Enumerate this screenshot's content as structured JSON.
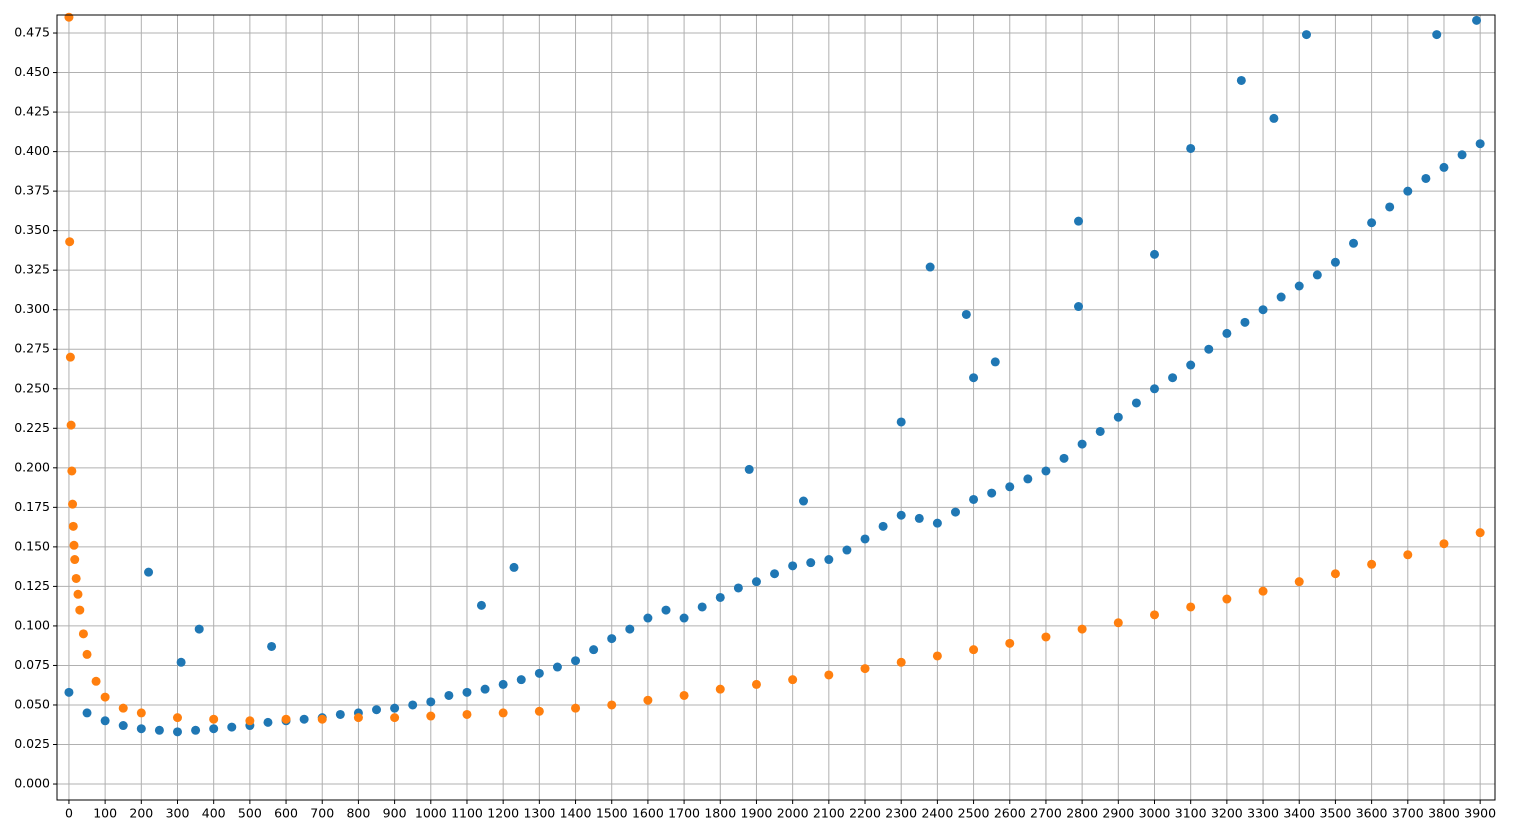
{
  "chart_data": {
    "type": "scatter",
    "xlim": [
      -33,
      3941
    ],
    "ylim": [
      -0.0101,
      0.4864
    ],
    "xticks": [
      0,
      100,
      200,
      300,
      400,
      500,
      600,
      700,
      800,
      900,
      1000,
      1100,
      1200,
      1300,
      1400,
      1500,
      1600,
      1700,
      1800,
      1900,
      2000,
      2100,
      2200,
      2300,
      2400,
      2500,
      2600,
      2700,
      2800,
      2900,
      3000,
      3100,
      3200,
      3300,
      3400,
      3500,
      3600,
      3700,
      3800,
      3900
    ],
    "yticks": [
      {
        "value": 0,
        "label": "0.000"
      },
      {
        "value": 0.025,
        "label": "0.025"
      },
      {
        "value": 0.05,
        "label": "0.050"
      },
      {
        "value": 0.075,
        "label": "0.075"
      },
      {
        "value": 0.1,
        "label": "0.100"
      },
      {
        "value": 0.125,
        "label": "0.125"
      },
      {
        "value": 0.15,
        "label": "0.150"
      },
      {
        "value": 0.175,
        "label": "0.175"
      },
      {
        "value": 0.2,
        "label": "0.200"
      },
      {
        "value": 0.225,
        "label": "0.225"
      },
      {
        "value": 0.25,
        "label": "0.250"
      },
      {
        "value": 0.275,
        "label": "0.275"
      },
      {
        "value": 0.3,
        "label": "0.300"
      },
      {
        "value": 0.325,
        "label": "0.325"
      },
      {
        "value": 0.35,
        "label": "0.350"
      },
      {
        "value": 0.375,
        "label": "0.375"
      },
      {
        "value": 0.4,
        "label": "0.400"
      },
      {
        "value": 0.425,
        "label": "0.425"
      },
      {
        "value": 0.45,
        "label": "0.450"
      },
      {
        "value": 0.475,
        "label": "0.475"
      }
    ],
    "grid": true,
    "series": [
      {
        "color": "#1f77b4",
        "x": [
          0,
          50,
          100,
          150,
          200,
          250,
          300,
          350,
          400,
          450,
          500,
          550,
          600,
          650,
          700,
          750,
          800,
          850,
          900,
          950,
          1000,
          1050,
          1100,
          1150,
          1200,
          1250,
          1300,
          1350,
          1400,
          1450,
          1500,
          1550,
          1600,
          1650,
          1700,
          1750,
          1800,
          1850,
          1900,
          1950,
          2000,
          2050,
          2100,
          2150,
          2200,
          2250,
          2300,
          2350,
          2400,
          2450,
          2500,
          2550,
          2600,
          2650,
          2700,
          2750,
          2800,
          2850,
          2900,
          2950,
          3000,
          3050,
          3100,
          3150,
          3200,
          3250,
          3300,
          3350,
          3400,
          3450,
          3500,
          3550,
          3600,
          3650,
          3700,
          3750,
          3800,
          3850,
          3900,
          220,
          360,
          310,
          560,
          1140,
          1230,
          1880,
          2030,
          2300,
          2380,
          2480,
          2560,
          2790,
          2790,
          3100,
          3240,
          3420,
          3890,
          3780,
          3330,
          3000,
          2500
        ],
        "values": [
          0.058,
          0.045,
          0.04,
          0.037,
          0.035,
          0.034,
          0.033,
          0.034,
          0.035,
          0.036,
          0.037,
          0.039,
          0.04,
          0.041,
          0.042,
          0.044,
          0.045,
          0.047,
          0.048,
          0.05,
          0.052,
          0.056,
          0.058,
          0.06,
          0.063,
          0.066,
          0.07,
          0.074,
          0.078,
          0.085,
          0.092,
          0.098,
          0.105,
          0.11,
          0.105,
          0.112,
          0.118,
          0.124,
          0.128,
          0.133,
          0.138,
          0.14,
          0.142,
          0.148,
          0.155,
          0.163,
          0.17,
          0.168,
          0.165,
          0.172,
          0.18,
          0.184,
          0.188,
          0.193,
          0.198,
          0.206,
          0.215,
          0.223,
          0.232,
          0.241,
          0.25,
          0.257,
          0.265,
          0.275,
          0.285,
          0.292,
          0.3,
          0.308,
          0.315,
          0.322,
          0.33,
          0.342,
          0.355,
          0.365,
          0.375,
          0.383,
          0.39,
          0.398,
          0.405,
          0.134,
          0.098,
          0.077,
          0.087,
          0.113,
          0.137,
          0.199,
          0.179,
          0.229,
          0.327,
          0.297,
          0.267,
          0.356,
          0.302,
          0.402,
          0.445,
          0.474,
          0.483,
          0.474,
          0.421,
          0.335,
          0.257
        ]
      },
      {
        "color": "#ff7f0e",
        "x": [
          0,
          2,
          4,
          6,
          8,
          10,
          12,
          14,
          16,
          20,
          25,
          30,
          40,
          50,
          75,
          100,
          150,
          200,
          300,
          400,
          500,
          600,
          700,
          800,
          900,
          1000,
          1100,
          1200,
          1300,
          1400,
          1500,
          1600,
          1700,
          1800,
          1900,
          2000,
          2100,
          2200,
          2300,
          2400,
          2500,
          2600,
          2700,
          2800,
          2900,
          3000,
          3100,
          3200,
          3300,
          3400,
          3500,
          3600,
          3700,
          3800,
          3900
        ],
        "values": [
          0.485,
          0.343,
          0.27,
          0.227,
          0.198,
          0.177,
          0.163,
          0.151,
          0.142,
          0.13,
          0.12,
          0.11,
          0.095,
          0.082,
          0.065,
          0.055,
          0.048,
          0.045,
          0.042,
          0.041,
          0.04,
          0.041,
          0.041,
          0.042,
          0.042,
          0.043,
          0.044,
          0.045,
          0.046,
          0.048,
          0.05,
          0.053,
          0.056,
          0.06,
          0.063,
          0.066,
          0.069,
          0.073,
          0.077,
          0.081,
          0.085,
          0.089,
          0.093,
          0.098,
          0.102,
          0.107,
          0.112,
          0.117,
          0.122,
          0.128,
          0.133,
          0.139,
          0.145,
          0.152,
          0.159
        ]
      }
    ]
  }
}
